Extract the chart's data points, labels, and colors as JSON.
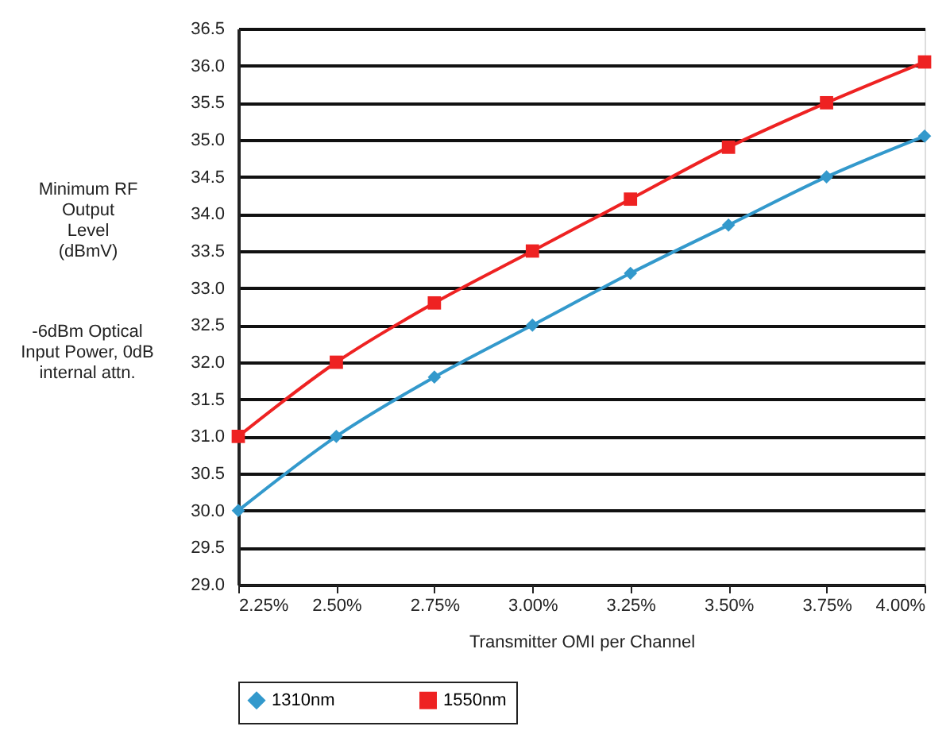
{
  "chart_data": {
    "type": "line",
    "ylabel": "Minimum RF Output Level (dBmV)",
    "xlabel": "Transmitter OMI per Channel",
    "annotations": [
      "-6dBm Optical Input Power, 0dB internal attn."
    ],
    "x": [
      2.25,
      2.5,
      2.75,
      3.0,
      3.25,
      3.5,
      3.75,
      4.0
    ],
    "series": [
      {
        "name": "1310nm",
        "color": "#3399cc",
        "marker": "diamond",
        "values": [
          30.0,
          31.0,
          31.8,
          32.5,
          33.2,
          33.85,
          34.5,
          35.05
        ]
      },
      {
        "name": "1550nm",
        "color": "#ee2222",
        "marker": "square",
        "values": [
          31.0,
          32.0,
          32.8,
          33.5,
          34.2,
          34.9,
          35.5,
          36.05
        ]
      }
    ],
    "xlim": [
      2.25,
      4.0
    ],
    "xticks": [
      {
        "value": 2.25,
        "label": "2.25%"
      },
      {
        "value": 2.5,
        "label": "2.50%"
      },
      {
        "value": 2.75,
        "label": "2.75%"
      },
      {
        "value": 3.0,
        "label": "3.00%"
      },
      {
        "value": 3.25,
        "label": "3.25%"
      },
      {
        "value": 3.5,
        "label": "3.50%"
      },
      {
        "value": 3.75,
        "label": "3.75%"
      },
      {
        "value": 4.0,
        "label": "4.00%"
      }
    ],
    "ylim": [
      29.0,
      36.5
    ],
    "yticks": [
      {
        "value": 29,
        "label": "29.0"
      },
      29.5,
      {
        "value": 30,
        "label": "30.0"
      },
      30.5,
      {
        "value": 31,
        "label": "31.0"
      },
      31.5,
      {
        "value": 32,
        "label": "32.0"
      },
      32.5,
      {
        "value": 33,
        "label": "33.0"
      },
      33.5,
      {
        "value": 34,
        "label": "34.0"
      },
      34.5,
      {
        "value": 35,
        "label": "35.0"
      },
      35.5,
      {
        "value": 36,
        "label": "36.0"
      },
      36.5
    ],
    "grid": "y",
    "legend": "bottom",
    "line_style": "solid"
  }
}
